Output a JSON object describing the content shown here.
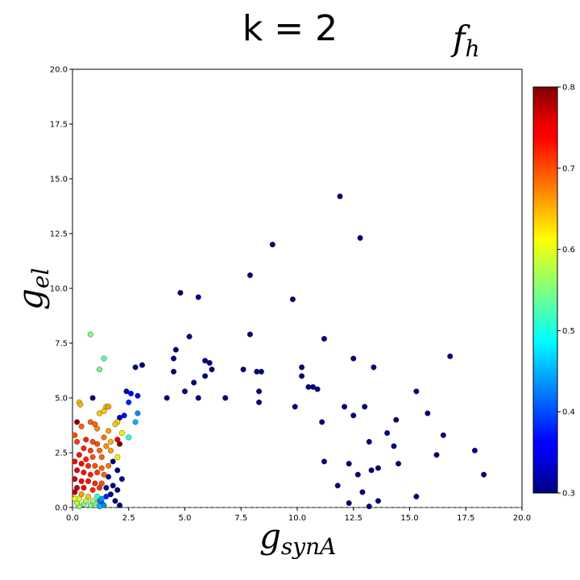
{
  "chart_data": {
    "type": "scatter",
    "title": "k = 2",
    "subtitle": "f_h",
    "xlabel": "g_synA",
    "ylabel": "g_el",
    "xlim": [
      0,
      20
    ],
    "ylim": [
      0,
      20
    ],
    "x_ticks": [
      "0.0",
      "2.5",
      "5.0",
      "7.5",
      "10.0",
      "12.5",
      "15.0",
      "17.5",
      "20.0"
    ],
    "y_ticks": [
      "0.0",
      "2.5",
      "5.0",
      "7.5",
      "10.0",
      "12.5",
      "15.0",
      "17.5",
      "20.0"
    ],
    "grid": false,
    "colorbar": {
      "colormap": "jet",
      "range": [
        0.3,
        0.8
      ],
      "ticks": [
        "0.3",
        "0.4",
        "0.5",
        "0.6",
        "0.7",
        "0.8"
      ]
    },
    "points": [
      {
        "x": 11.9,
        "y": 14.2,
        "c": 0.3
      },
      {
        "x": 12.8,
        "y": 12.3,
        "c": 0.3
      },
      {
        "x": 8.9,
        "y": 12.0,
        "c": 0.3
      },
      {
        "x": 7.9,
        "y": 10.6,
        "c": 0.3
      },
      {
        "x": 4.8,
        "y": 9.8,
        "c": 0.3
      },
      {
        "x": 5.6,
        "y": 9.6,
        "c": 0.3
      },
      {
        "x": 9.8,
        "y": 9.5,
        "c": 0.3
      },
      {
        "x": 7.9,
        "y": 7.9,
        "c": 0.3
      },
      {
        "x": 5.2,
        "y": 7.8,
        "c": 0.3
      },
      {
        "x": 11.2,
        "y": 7.7,
        "c": 0.3
      },
      {
        "x": 4.6,
        "y": 7.2,
        "c": 0.3
      },
      {
        "x": 4.5,
        "y": 6.8,
        "c": 0.3
      },
      {
        "x": 12.5,
        "y": 6.8,
        "c": 0.3
      },
      {
        "x": 16.8,
        "y": 6.9,
        "c": 0.3
      },
      {
        "x": 5.9,
        "y": 6.7,
        "c": 0.3
      },
      {
        "x": 6.1,
        "y": 6.6,
        "c": 0.3
      },
      {
        "x": 3.1,
        "y": 6.5,
        "c": 0.3
      },
      {
        "x": 2.8,
        "y": 6.4,
        "c": 0.3
      },
      {
        "x": 10.2,
        "y": 6.4,
        "c": 0.3
      },
      {
        "x": 13.4,
        "y": 6.4,
        "c": 0.3
      },
      {
        "x": 7.6,
        "y": 6.3,
        "c": 0.3
      },
      {
        "x": 6.2,
        "y": 6.3,
        "c": 0.3
      },
      {
        "x": 8.2,
        "y": 6.2,
        "c": 0.3
      },
      {
        "x": 8.4,
        "y": 6.2,
        "c": 0.3
      },
      {
        "x": 4.5,
        "y": 6.2,
        "c": 0.3
      },
      {
        "x": 5.9,
        "y": 6.0,
        "c": 0.3
      },
      {
        "x": 10.2,
        "y": 6.0,
        "c": 0.3
      },
      {
        "x": 5.4,
        "y": 5.7,
        "c": 0.3
      },
      {
        "x": 10.5,
        "y": 5.5,
        "c": 0.3
      },
      {
        "x": 10.7,
        "y": 5.5,
        "c": 0.3
      },
      {
        "x": 10.9,
        "y": 5.4,
        "c": 0.3
      },
      {
        "x": 15.3,
        "y": 5.3,
        "c": 0.3
      },
      {
        "x": 5.0,
        "y": 5.3,
        "c": 0.3
      },
      {
        "x": 8.3,
        "y": 5.3,
        "c": 0.3
      },
      {
        "x": 0.9,
        "y": 5.0,
        "c": 0.3
      },
      {
        "x": 4.2,
        "y": 5.0,
        "c": 0.3
      },
      {
        "x": 5.6,
        "y": 5.0,
        "c": 0.3
      },
      {
        "x": 6.8,
        "y": 5.0,
        "c": 0.3
      },
      {
        "x": 8.3,
        "y": 4.8,
        "c": 0.3
      },
      {
        "x": 12.1,
        "y": 4.6,
        "c": 0.3
      },
      {
        "x": 13.0,
        "y": 4.6,
        "c": 0.3
      },
      {
        "x": 9.9,
        "y": 4.6,
        "c": 0.3
      },
      {
        "x": 15.8,
        "y": 4.3,
        "c": 0.3
      },
      {
        "x": 12.5,
        "y": 4.2,
        "c": 0.3
      },
      {
        "x": 14.4,
        "y": 4.0,
        "c": 0.3
      },
      {
        "x": 11.1,
        "y": 3.9,
        "c": 0.3
      },
      {
        "x": 14.0,
        "y": 3.4,
        "c": 0.3
      },
      {
        "x": 16.5,
        "y": 3.3,
        "c": 0.3
      },
      {
        "x": 13.2,
        "y": 3.0,
        "c": 0.3
      },
      {
        "x": 14.3,
        "y": 2.8,
        "c": 0.3
      },
      {
        "x": 17.9,
        "y": 2.6,
        "c": 0.3
      },
      {
        "x": 16.2,
        "y": 2.4,
        "c": 0.3
      },
      {
        "x": 11.2,
        "y": 2.1,
        "c": 0.3
      },
      {
        "x": 12.3,
        "y": 2.0,
        "c": 0.3
      },
      {
        "x": 14.5,
        "y": 2.0,
        "c": 0.3
      },
      {
        "x": 13.6,
        "y": 1.8,
        "c": 0.3
      },
      {
        "x": 13.3,
        "y": 1.7,
        "c": 0.3
      },
      {
        "x": 12.7,
        "y": 1.5,
        "c": 0.3
      },
      {
        "x": 18.3,
        "y": 1.5,
        "c": 0.3
      },
      {
        "x": 11.8,
        "y": 1.0,
        "c": 0.3
      },
      {
        "x": 12.9,
        "y": 0.7,
        "c": 0.3
      },
      {
        "x": 15.3,
        "y": 0.5,
        "c": 0.3
      },
      {
        "x": 13.6,
        "y": 0.3,
        "c": 0.3
      },
      {
        "x": 12.3,
        "y": 0.2,
        "c": 0.3
      },
      {
        "x": 13.2,
        "y": 0.05,
        "c": 0.3
      },
      {
        "x": 2.4,
        "y": 5.3,
        "c": 0.32
      },
      {
        "x": 2.6,
        "y": 5.2,
        "c": 0.36
      },
      {
        "x": 2.5,
        "y": 4.8,
        "c": 0.38
      },
      {
        "x": 2.9,
        "y": 5.1,
        "c": 0.36
      },
      {
        "x": 2.3,
        "y": 4.2,
        "c": 0.37
      },
      {
        "x": 2.1,
        "y": 4.1,
        "c": 0.33
      },
      {
        "x": 2.8,
        "y": 3.9,
        "c": 0.45
      },
      {
        "x": 2.9,
        "y": 4.3,
        "c": 0.43
      },
      {
        "x": 2.5,
        "y": 3.2,
        "c": 0.5
      },
      {
        "x": 2.0,
        "y": 3.1,
        "c": 0.75
      },
      {
        "x": 2.1,
        "y": 2.9,
        "c": 0.8
      },
      {
        "x": 2.0,
        "y": 2.3,
        "c": 0.62
      },
      {
        "x": 1.3,
        "y": 0.4,
        "c": 0.44
      },
      {
        "x": 1.2,
        "y": 0.3,
        "c": 0.42
      },
      {
        "x": 1.3,
        "y": 0.2,
        "c": 0.4
      },
      {
        "x": 1.4,
        "y": 0.1,
        "c": 0.43
      },
      {
        "x": 1.2,
        "y": 0.05,
        "c": 0.45
      },
      {
        "x": 1.5,
        "y": 0.5,
        "c": 0.38
      },
      {
        "x": 0.8,
        "y": 7.9,
        "c": 0.55
      },
      {
        "x": 1.4,
        "y": 6.8,
        "c": 0.53
      },
      {
        "x": 1.2,
        "y": 6.3,
        "c": 0.54
      },
      {
        "x": 0.3,
        "y": 4.8,
        "c": 0.64
      },
      {
        "x": 0.35,
        "y": 4.7,
        "c": 0.65
      },
      {
        "x": 1.2,
        "y": 4.3,
        "c": 0.64
      },
      {
        "x": 1.4,
        "y": 4.4,
        "c": 0.64
      },
      {
        "x": 1.5,
        "y": 4.6,
        "c": 0.65
      },
      {
        "x": 2.0,
        "y": 3.9,
        "c": 0.63
      },
      {
        "x": 1.6,
        "y": 3.5,
        "c": 0.66
      },
      {
        "x": 2.2,
        "y": 3.4,
        "c": 0.62
      },
      {
        "x": 0.2,
        "y": 3.9,
        "c": 0.79
      },
      {
        "x": 0.4,
        "y": 3.7,
        "c": 0.69
      },
      {
        "x": 0.8,
        "y": 3.9,
        "c": 0.69
      },
      {
        "x": 1.0,
        "y": 3.8,
        "c": 0.69
      },
      {
        "x": 1.1,
        "y": 3.6,
        "c": 0.67
      },
      {
        "x": 1.4,
        "y": 3.2,
        "c": 0.68
      },
      {
        "x": 0.1,
        "y": 3.3,
        "c": 0.7
      },
      {
        "x": 0.2,
        "y": 3.0,
        "c": 0.71
      },
      {
        "x": 0.6,
        "y": 3.1,
        "c": 0.72
      },
      {
        "x": 0.9,
        "y": 3.0,
        "c": 0.7
      },
      {
        "x": 1.1,
        "y": 2.9,
        "c": 0.7
      },
      {
        "x": 0.5,
        "y": 2.7,
        "c": 0.72
      },
      {
        "x": 0.8,
        "y": 2.6,
        "c": 0.71
      },
      {
        "x": 1.2,
        "y": 2.6,
        "c": 0.69
      },
      {
        "x": 1.5,
        "y": 2.8,
        "c": 0.67
      },
      {
        "x": 0.3,
        "y": 2.4,
        "c": 0.73
      },
      {
        "x": 0.6,
        "y": 2.2,
        "c": 0.72
      },
      {
        "x": 0.9,
        "y": 2.3,
        "c": 0.7
      },
      {
        "x": 1.3,
        "y": 2.3,
        "c": 0.69
      },
      {
        "x": 0.1,
        "y": 2.1,
        "c": 0.74
      },
      {
        "x": 0.4,
        "y": 2.0,
        "c": 0.74
      },
      {
        "x": 0.7,
        "y": 1.9,
        "c": 0.72
      },
      {
        "x": 1.0,
        "y": 1.9,
        "c": 0.7
      },
      {
        "x": 1.3,
        "y": 1.8,
        "c": 0.69
      },
      {
        "x": 1.6,
        "y": 1.9,
        "c": 0.68
      },
      {
        "x": 0.2,
        "y": 1.7,
        "c": 0.75
      },
      {
        "x": 0.5,
        "y": 1.6,
        "c": 0.73
      },
      {
        "x": 0.8,
        "y": 1.5,
        "c": 0.72
      },
      {
        "x": 1.1,
        "y": 1.6,
        "c": 0.71
      },
      {
        "x": 1.4,
        "y": 1.5,
        "c": 0.69
      },
      {
        "x": 0.1,
        "y": 1.3,
        "c": 0.76
      },
      {
        "x": 0.4,
        "y": 1.2,
        "c": 0.74
      },
      {
        "x": 0.7,
        "y": 1.2,
        "c": 0.73
      },
      {
        "x": 1.0,
        "y": 1.1,
        "c": 0.72
      },
      {
        "x": 1.3,
        "y": 1.1,
        "c": 0.7
      },
      {
        "x": 0.2,
        "y": 0.9,
        "c": 0.76
      },
      {
        "x": 0.5,
        "y": 0.9,
        "c": 0.74
      },
      {
        "x": 0.9,
        "y": 0.8,
        "c": 0.72
      },
      {
        "x": 1.2,
        "y": 0.9,
        "c": 0.71
      },
      {
        "x": 0.1,
        "y": 0.7,
        "c": 0.77
      },
      {
        "x": 0.4,
        "y": 0.6,
        "c": 0.66
      },
      {
        "x": 0.7,
        "y": 0.5,
        "c": 0.64
      },
      {
        "x": 0.3,
        "y": 0.4,
        "c": 0.6
      },
      {
        "x": 0.6,
        "y": 0.3,
        "c": 0.58
      },
      {
        "x": 0.9,
        "y": 0.3,
        "c": 0.56
      },
      {
        "x": 0.2,
        "y": 0.2,
        "c": 0.57
      },
      {
        "x": 0.5,
        "y": 0.15,
        "c": 0.55
      },
      {
        "x": 0.8,
        "y": 0.1,
        "c": 0.54
      },
      {
        "x": 1.0,
        "y": 0.2,
        "c": 0.55
      },
      {
        "x": 0.3,
        "y": 0.05,
        "c": 0.56
      },
      {
        "x": 0.1,
        "y": 0.4,
        "c": 0.6
      },
      {
        "x": 1.1,
        "y": 0.5,
        "c": 0.52
      },
      {
        "x": 1.6,
        "y": 4.6,
        "c": 0.66
      },
      {
        "x": 1.9,
        "y": 3.8,
        "c": 0.64
      },
      {
        "x": 1.7,
        "y": 3.0,
        "c": 0.65
      },
      {
        "x": 1.7,
        "y": 2.6,
        "c": 0.66
      },
      {
        "x": 1.8,
        "y": 2.1,
        "c": 0.3
      },
      {
        "x": 1.6,
        "y": 1.4,
        "c": 0.3
      },
      {
        "x": 1.8,
        "y": 1.0,
        "c": 0.3
      },
      {
        "x": 1.5,
        "y": 0.9,
        "c": 0.3
      },
      {
        "x": 1.7,
        "y": 0.6,
        "c": 0.3
      },
      {
        "x": 2.0,
        "y": 0.8,
        "c": 0.3
      },
      {
        "x": 2.2,
        "y": 1.3,
        "c": 0.3
      },
      {
        "x": 2.0,
        "y": 1.7,
        "c": 0.3
      },
      {
        "x": 1.9,
        "y": 0.3,
        "c": 0.3
      },
      {
        "x": 2.1,
        "y": 0.1,
        "c": 0.3
      }
    ]
  }
}
